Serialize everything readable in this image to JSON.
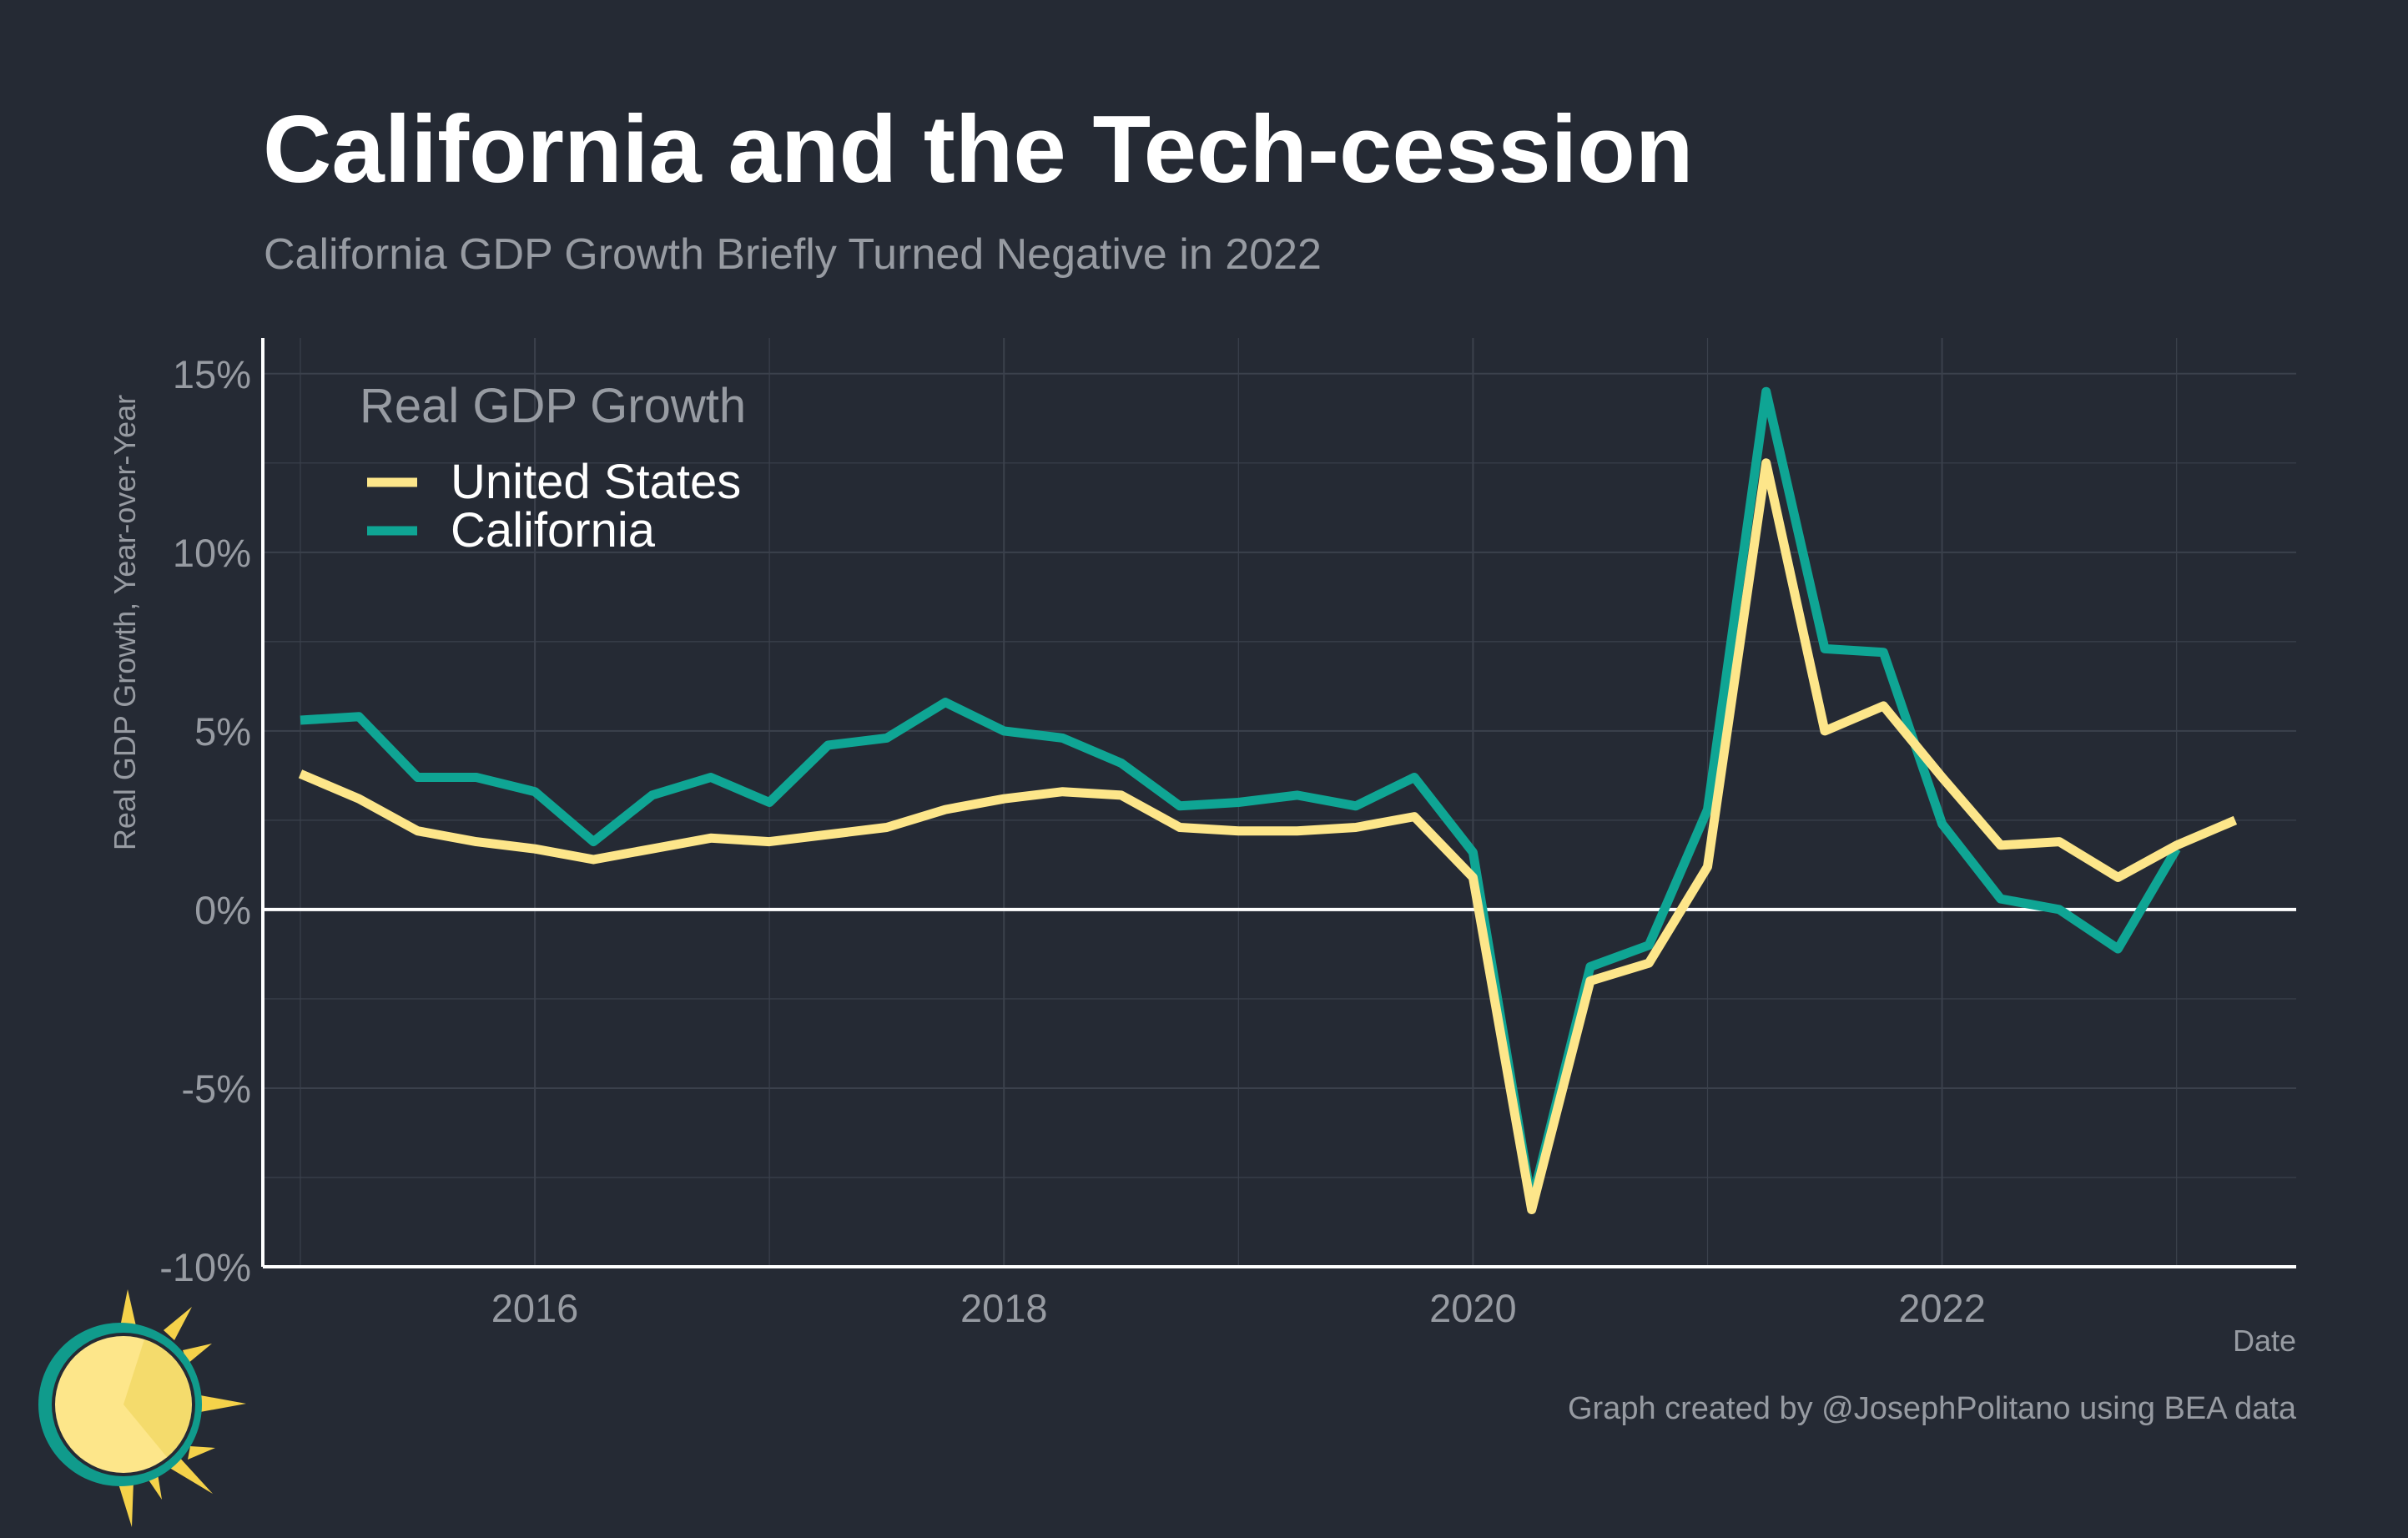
{
  "chart_data": {
    "type": "line",
    "title": "California and the Tech-cession",
    "subtitle": "California GDP Growth Briefly Turned Negative in 2022",
    "xlabel": "Date",
    "ylabel": "Real GDP Growth, Year-over-Year",
    "caption": "Graph created by @JosephPolitano using BEA data",
    "legend": {
      "title": "Real GDP Growth",
      "position": "top-left"
    },
    "x_range": [
      2014.84,
      2023.51
    ],
    "ylim": [
      -10,
      16
    ],
    "x_ticks": [
      {
        "value": 2016,
        "label": "2016"
      },
      {
        "value": 2018,
        "label": "2018"
      },
      {
        "value": 2020,
        "label": "2020"
      },
      {
        "value": 2022,
        "label": "2022"
      }
    ],
    "y_ticks": [
      {
        "value": 15,
        "label": "15%"
      },
      {
        "value": 10,
        "label": "10%"
      },
      {
        "value": 5,
        "label": "5%"
      },
      {
        "value": 0,
        "label": "0%"
      },
      {
        "value": -5,
        "label": "-5%"
      },
      {
        "value": -10,
        "label": "-10%"
      }
    ],
    "grid": true,
    "zero_line": true,
    "series": [
      {
        "name": "United States",
        "color": "#fde68a",
        "x": [
          "2015-Q1",
          "2015-Q2",
          "2015-Q3",
          "2015-Q4",
          "2016-Q1",
          "2016-Q2",
          "2016-Q3",
          "2016-Q4",
          "2017-Q1",
          "2017-Q2",
          "2017-Q3",
          "2017-Q4",
          "2018-Q1",
          "2018-Q2",
          "2018-Q3",
          "2018-Q4",
          "2019-Q1",
          "2019-Q2",
          "2019-Q3",
          "2019-Q4",
          "2020-Q1",
          "2020-Q2",
          "2020-Q3",
          "2020-Q4",
          "2021-Q1",
          "2021-Q2",
          "2021-Q3",
          "2021-Q4",
          "2022-Q1",
          "2022-Q2",
          "2022-Q3",
          "2022-Q4",
          "2023-Q1",
          "2023-Q2"
        ],
        "values": [
          3.8,
          3.1,
          2.2,
          1.9,
          1.7,
          1.4,
          1.7,
          2.0,
          1.9,
          2.1,
          2.3,
          2.8,
          3.1,
          3.3,
          3.2,
          2.3,
          2.2,
          2.2,
          2.3,
          2.6,
          0.9,
          -8.4,
          -2.0,
          -1.5,
          1.2,
          12.5,
          5.0,
          5.7,
          3.7,
          1.8,
          1.9,
          0.9,
          1.8,
          2.5
        ]
      },
      {
        "name": "California",
        "color": "#0fa594",
        "x": [
          "2015-Q1",
          "2015-Q2",
          "2015-Q3",
          "2015-Q4",
          "2016-Q1",
          "2016-Q2",
          "2016-Q3",
          "2016-Q4",
          "2017-Q1",
          "2017-Q2",
          "2017-Q3",
          "2017-Q4",
          "2018-Q1",
          "2018-Q2",
          "2018-Q3",
          "2018-Q4",
          "2019-Q1",
          "2019-Q2",
          "2019-Q3",
          "2019-Q4",
          "2020-Q1",
          "2020-Q2",
          "2020-Q3",
          "2020-Q4",
          "2021-Q1",
          "2021-Q2",
          "2021-Q3",
          "2021-Q4",
          "2022-Q1",
          "2022-Q2",
          "2022-Q3",
          "2022-Q4",
          "2023-Q1"
        ],
        "values": [
          5.3,
          5.4,
          3.7,
          3.7,
          3.3,
          1.9,
          3.2,
          3.7,
          3.0,
          4.6,
          4.8,
          5.8,
          5.0,
          4.8,
          4.1,
          2.9,
          3.0,
          3.2,
          2.9,
          3.7,
          1.6,
          -8.2,
          -1.6,
          -1.0,
          2.8,
          14.5,
          7.3,
          7.2,
          2.4,
          0.3,
          0.0,
          -1.1,
          1.7
        ]
      }
    ]
  },
  "colors": {
    "background": "#252a34",
    "grid": "#3b414c",
    "axis": "#ffffff",
    "title": "#ffffff",
    "muted_text": "#979ba2",
    "legend_text": "#ffffff"
  },
  "logo": {
    "icon": "sun-icon",
    "colors": [
      "#fde68a",
      "#f4db6c",
      "#f5d24a",
      "#109b8c"
    ]
  }
}
